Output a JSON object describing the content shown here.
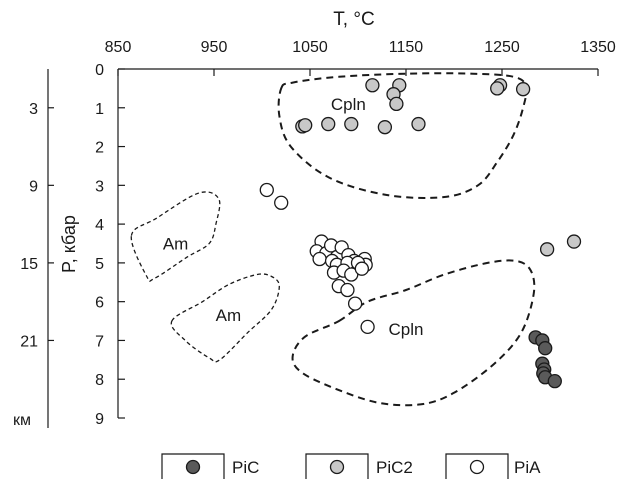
{
  "chart_data": {
    "type": "scatter",
    "title": "",
    "xlabel": "T, °C",
    "ylabel": "P, кбар",
    "depth_label": "км",
    "x_axis_position": "top",
    "xlim": [
      850,
      1350
    ],
    "ylim": [
      0,
      9
    ],
    "y_inverted": true,
    "grid": false,
    "x_ticks": [
      "850",
      "950",
      "1050",
      "1150",
      "1250",
      "1350"
    ],
    "y_ticks": [
      "0",
      "1",
      "2",
      "3",
      "4",
      "5",
      "6",
      "7",
      "8",
      "9"
    ],
    "depth_ticks": [
      {
        "label": "3",
        "p": 1.0
      },
      {
        "label": "9",
        "p": 3.0
      },
      {
        "label": "15",
        "p": 5.0
      },
      {
        "label": "21",
        "p": 7.0
      }
    ],
    "legend_position": "bottom",
    "series": [
      {
        "name": "PiC",
        "color": "#5a5a5a",
        "points": [
          [
            1285,
            6.92
          ],
          [
            1292,
            7.0
          ],
          [
            1295,
            7.2
          ],
          [
            1292,
            7.6
          ],
          [
            1294,
            7.75
          ],
          [
            1293,
            7.85
          ],
          [
            1295,
            7.95
          ],
          [
            1305,
            8.05
          ]
        ]
      },
      {
        "name": "PiC2",
        "color": "#c8c8c8",
        "points": [
          [
            1115,
            0.42
          ],
          [
            1143,
            0.42
          ],
          [
            1137,
            0.65
          ],
          [
            1140,
            0.9
          ],
          [
            1248,
            0.42
          ],
          [
            1245,
            0.5
          ],
          [
            1272,
            0.52
          ],
          [
            1042,
            1.48
          ],
          [
            1045,
            1.45
          ],
          [
            1069,
            1.42
          ],
          [
            1093,
            1.42
          ],
          [
            1128,
            1.5
          ],
          [
            1163,
            1.42
          ],
          [
            1297,
            4.65
          ],
          [
            1325,
            4.45
          ]
        ]
      },
      {
        "name": "PiA",
        "color": "#ffffff",
        "points": [
          [
            1005,
            3.12
          ],
          [
            1020,
            3.45
          ],
          [
            1062,
            4.45
          ],
          [
            1057,
            4.7
          ],
          [
            1067,
            4.75
          ],
          [
            1072,
            4.55
          ],
          [
            1078,
            4.85
          ],
          [
            1083,
            4.6
          ],
          [
            1090,
            4.8
          ],
          [
            1096,
            4.95
          ],
          [
            1102,
            5.1
          ],
          [
            1107,
            4.9
          ],
          [
            1108,
            5.05
          ],
          [
            1060,
            4.9
          ],
          [
            1073,
            4.95
          ],
          [
            1078,
            5.05
          ],
          [
            1089,
            5.0
          ],
          [
            1100,
            5.0
          ],
          [
            1075,
            5.25
          ],
          [
            1085,
            5.2
          ],
          [
            1093,
            5.3
          ],
          [
            1104,
            5.15
          ],
          [
            1080,
            5.6
          ],
          [
            1089,
            5.7
          ],
          [
            1097,
            6.05
          ],
          [
            1110,
            6.65
          ]
        ]
      }
    ],
    "fields": [
      {
        "label": "Cpln",
        "label_at": [
          1090,
          0.9
        ],
        "outline": [
          [
            1020,
            0.5
          ],
          [
            1032,
            0.35
          ],
          [
            1080,
            0.2
          ],
          [
            1150,
            0.12
          ],
          [
            1220,
            0.12
          ],
          [
            1262,
            0.2
          ],
          [
            1275,
            0.45
          ],
          [
            1272,
            1.0
          ],
          [
            1262,
            1.7
          ],
          [
            1245,
            2.4
          ],
          [
            1225,
            3.0
          ],
          [
            1190,
            3.3
          ],
          [
            1130,
            3.25
          ],
          [
            1070,
            2.8
          ],
          [
            1030,
            2.0
          ],
          [
            1018,
            1.2
          ],
          [
            1020,
            0.5
          ]
        ]
      },
      {
        "label": "Cpln",
        "label_at": [
          1150,
          6.7
        ],
        "outline": [
          [
            1080,
            6.5
          ],
          [
            1110,
            6.0
          ],
          [
            1150,
            5.7
          ],
          [
            1190,
            5.3
          ],
          [
            1235,
            5.0
          ],
          [
            1265,
            4.95
          ],
          [
            1280,
            5.2
          ],
          [
            1283,
            5.8
          ],
          [
            1270,
            6.8
          ],
          [
            1242,
            7.6
          ],
          [
            1200,
            8.35
          ],
          [
            1165,
            8.65
          ],
          [
            1120,
            8.6
          ],
          [
            1072,
            8.2
          ],
          [
            1040,
            7.8
          ],
          [
            1032,
            7.4
          ],
          [
            1045,
            6.9
          ],
          [
            1080,
            6.5
          ]
        ]
      },
      {
        "label": "Am",
        "label_at": [
          910,
          4.5
        ],
        "outline": [
          [
            864,
            4.3
          ],
          [
            890,
            3.85
          ],
          [
            934,
            3.2
          ],
          [
            955,
            3.35
          ],
          [
            952,
            4.0
          ],
          [
            945,
            4.5
          ],
          [
            922,
            4.85
          ],
          [
            888,
            5.4
          ],
          [
            880,
            5.35
          ],
          [
            864,
            4.3
          ]
        ]
      },
      {
        "label": "Am",
        "label_at": [
          965,
          6.35
        ],
        "outline": [
          [
            906,
            6.5
          ],
          [
            938,
            6.0
          ],
          [
            966,
            5.55
          ],
          [
            995,
            5.3
          ],
          [
            1010,
            5.35
          ],
          [
            1018,
            5.6
          ],
          [
            1010,
            6.2
          ],
          [
            985,
            6.8
          ],
          [
            956,
            7.5
          ],
          [
            945,
            7.45
          ],
          [
            920,
            7.0
          ],
          [
            906,
            6.5
          ]
        ]
      }
    ]
  }
}
